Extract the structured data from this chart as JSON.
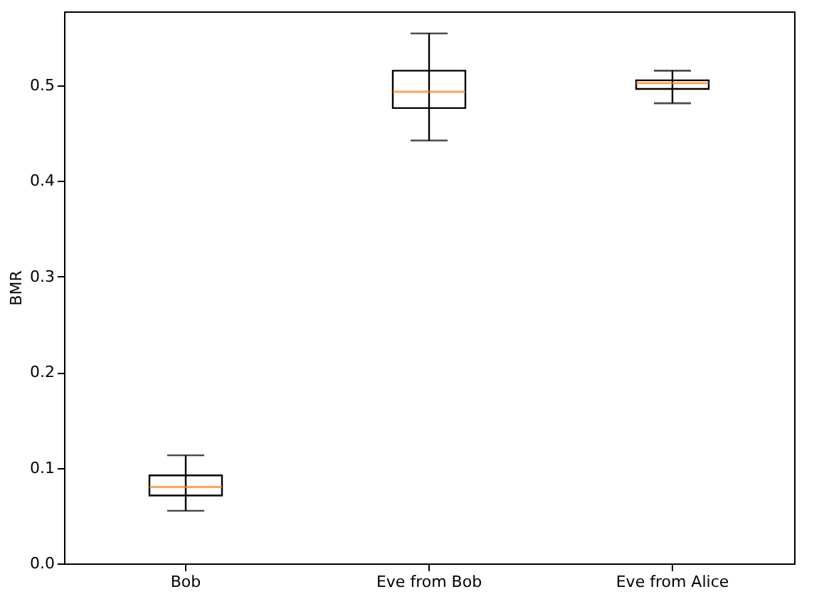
{
  "chart_data": {
    "type": "box",
    "ylabel": "BMR",
    "categories": [
      "Bob",
      "Eve from Bob",
      "Eve from Alice"
    ],
    "boxes": [
      {
        "low": 0.055,
        "q1": 0.071,
        "median": 0.08,
        "q3": 0.092,
        "high": 0.113
      },
      {
        "low": 0.442,
        "q1": 0.476,
        "median": 0.493,
        "q3": 0.515,
        "high": 0.554
      },
      {
        "low": 0.481,
        "q1": 0.496,
        "median": 0.502,
        "q3": 0.505,
        "high": 0.515
      }
    ],
    "color": "#ff7f0e",
    "ylim": [
      0,
      0.577
    ],
    "yticks": [
      {
        "value": 0,
        "label": "0.0"
      },
      0.1,
      0.2,
      0.3,
      0.4,
      0.5
    ],
    "grid": false
  }
}
